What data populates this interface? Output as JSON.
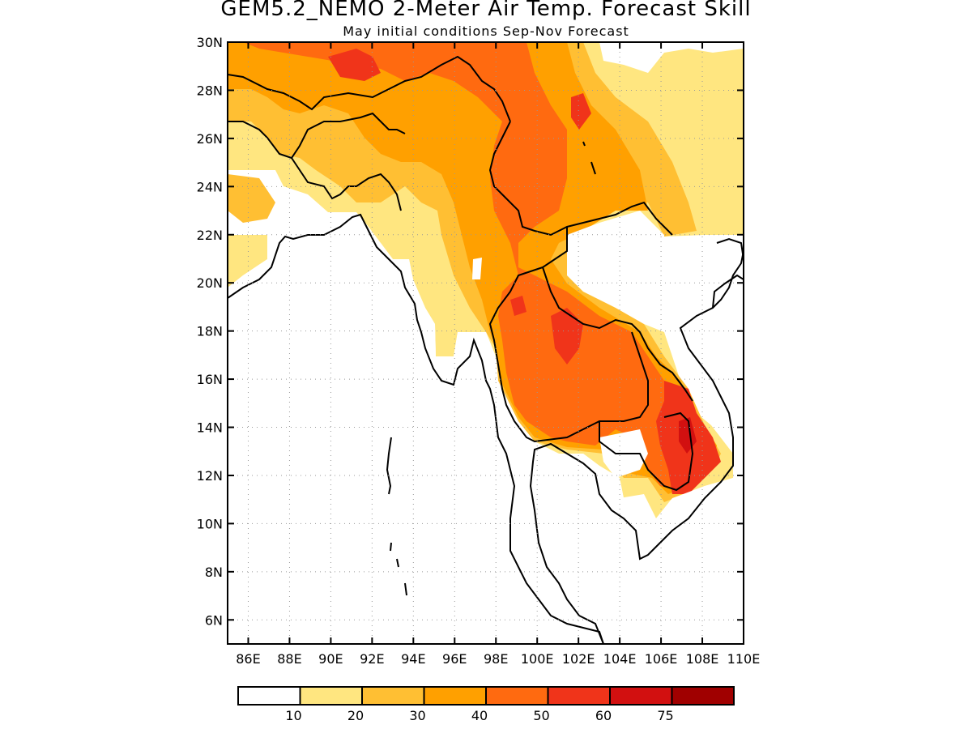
{
  "title": "GEM5.2_NEMO 2-Meter Air Temp. Forecast Skill",
  "subtitle": "May initial conditions  Sep-Nov Forecast",
  "map": {
    "lon_range": [
      85,
      110
    ],
    "lat_range": [
      5,
      30
    ],
    "lat_ticks": [
      "30N",
      "28N",
      "26N",
      "24N",
      "22N",
      "20N",
      "18N",
      "16N",
      "14N",
      "12N",
      "10N",
      "8N",
      "6N"
    ],
    "lon_ticks": [
      "86E",
      "88E",
      "90E",
      "92E",
      "94E",
      "96E",
      "98E",
      "100E",
      "102E",
      "104E",
      "106E",
      "108E",
      "110E"
    ],
    "gridlines": true
  },
  "legend": {
    "colors": [
      "#ffffff",
      "#ffe680",
      "#ffbf33",
      "#ffa000",
      "#ff6a10",
      "#f0341a",
      "#d21010",
      "#a00000"
    ],
    "labels": [
      "10",
      "20",
      "30",
      "40",
      "50",
      "60",
      "75"
    ]
  }
}
